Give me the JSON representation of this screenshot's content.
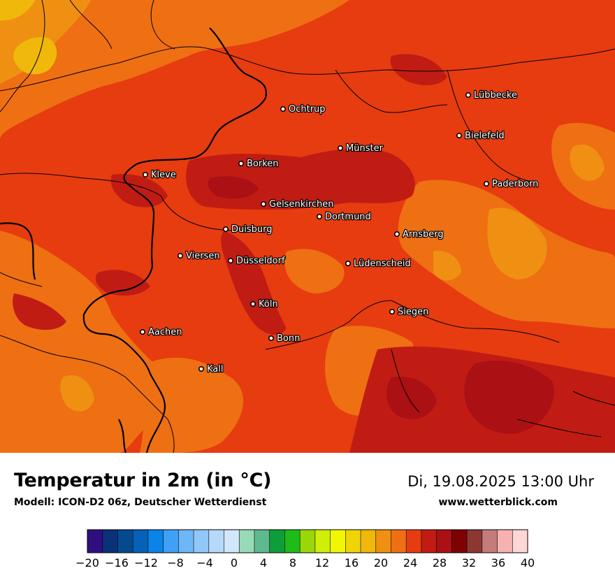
{
  "header": {
    "title": "Temperatur in 2m (in °C)",
    "subtitle": "Modell: ICON-D2 06z, Deutscher Wetterdienst",
    "datetime": "Di, 19.08.2025 13:00 Uhr",
    "website": "www.wetterblick.com"
  },
  "cities": [
    {
      "name": "Lübbecke"
    },
    {
      "name": "Ochtrup"
    },
    {
      "name": "Bielefeld"
    },
    {
      "name": "Münster"
    },
    {
      "name": "Borken"
    },
    {
      "name": "Kleve"
    },
    {
      "name": "Paderborn"
    },
    {
      "name": "Gelsenkirchen"
    },
    {
      "name": "Dortmund"
    },
    {
      "name": "Duisburg"
    },
    {
      "name": "Arnsberg"
    },
    {
      "name": "Viersen"
    },
    {
      "name": "Düsseldorf"
    },
    {
      "name": "Lüdenscheid"
    },
    {
      "name": "Köln"
    },
    {
      "name": "Siegen"
    },
    {
      "name": "Aachen"
    },
    {
      "name": "Bonn"
    },
    {
      "name": "Kall"
    }
  ],
  "legend": {
    "ticks": [
      "−20",
      "−16",
      "−12",
      "−8",
      "−4",
      "0",
      "4",
      "8",
      "12",
      "16",
      "20",
      "24",
      "28",
      "32",
      "36",
      "40"
    ],
    "colors": [
      "#2f0f7f",
      "#0a3278",
      "#054a8e",
      "#0661b8",
      "#0b83e8",
      "#3fa0f5",
      "#6db6f7",
      "#92c8f8",
      "#b6d9fa",
      "#d3e7fb",
      "#98dab8",
      "#5fb88e",
      "#0d9e3a",
      "#1ebc1a",
      "#9bd60a",
      "#cfee08",
      "#f1f702",
      "#f0d408",
      "#f0b80a",
      "#f09012",
      "#ef6f13",
      "#e63c10",
      "#c01c14",
      "#aa1014",
      "#7e0202",
      "#8c3734",
      "#c37b7b",
      "#f5b2b0",
      "#fdd6d6"
    ]
  },
  "map_colors": {
    "base": "#e63c10",
    "light": "#ef6f13",
    "lighter": "#f09012",
    "yellowish": "#f0b80a",
    "dark": "#c01c14",
    "darker": "#aa1014"
  }
}
